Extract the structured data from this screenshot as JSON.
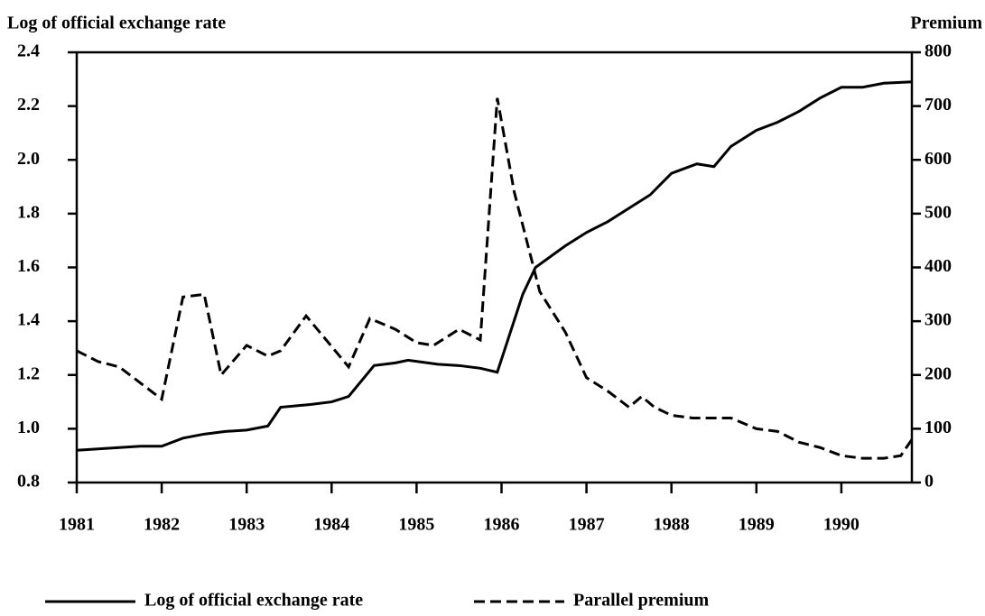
{
  "chart_data": {
    "type": "line",
    "y_label": "Log of official exchange rate",
    "y2_label": "Premium",
    "xlim": [
      1981,
      1990.83
    ],
    "xticks": [
      1981,
      1982,
      1983,
      1984,
      1985,
      1986,
      1987,
      1988,
      1989,
      1990
    ],
    "ylim": [
      0.8,
      2.4
    ],
    "yticks": [
      0.8,
      {
        "value": 1,
        "label": "1.0"
      },
      1.2,
      1.4,
      1.6,
      1.8,
      {
        "value": 2,
        "label": "2.0"
      },
      2.2,
      2.4
    ],
    "y2lim": [
      0,
      800
    ],
    "y2ticks": [
      0,
      100,
      200,
      300,
      400,
      500,
      600,
      700,
      800
    ],
    "legend": "bottom",
    "series": [
      {
        "name": "Log of official exchange rate",
        "color": "#000000",
        "line_style": "solid",
        "x": [
          1981,
          1981.25,
          1981.5,
          1981.75,
          1982,
          1982.25,
          1982.5,
          1982.75,
          1983,
          1983.25,
          1983.4,
          1983.75,
          1984,
          1984.2,
          1984.5,
          1984.75,
          1984.9,
          1985.25,
          1985.5,
          1985.75,
          1985.95,
          1986.25,
          1986.4,
          1986.75,
          1987,
          1987.25,
          1987.5,
          1987.75,
          1988,
          1988.3,
          1988.5,
          1988.7,
          1989,
          1989.25,
          1989.5,
          1989.75,
          1990,
          1990.25,
          1990.5,
          1990.83
        ],
        "values": [
          0.92,
          0.925,
          0.93,
          0.935,
          0.935,
          0.965,
          0.98,
          0.99,
          0.995,
          1.01,
          1.08,
          1.09,
          1.1,
          1.12,
          1.235,
          1.245,
          1.255,
          1.24,
          1.235,
          1.225,
          1.21,
          1.5,
          1.6,
          1.68,
          1.73,
          1.77,
          1.82,
          1.87,
          1.95,
          1.985,
          1.975,
          2.05,
          2.11,
          2.14,
          2.18,
          2.23,
          2.27,
          2.27,
          2.285,
          2.29
        ]
      },
      {
        "name": "Parallel premium",
        "color": "#000000",
        "line_style": "dashed",
        "axis": "y2",
        "x": [
          1981,
          1981.25,
          1981.5,
          1981.75,
          1982,
          1982.25,
          1982.5,
          1982.7,
          1983,
          1983.25,
          1983.4,
          1983.7,
          1984.2,
          1984.45,
          1984.75,
          1985,
          1985.2,
          1985.5,
          1985.75,
          1985.95,
          1986.15,
          1986.45,
          1986.75,
          1987,
          1987.25,
          1987.5,
          1987.65,
          1987.8,
          1988,
          1988.25,
          1988.5,
          1988.7,
          1989,
          1989.25,
          1989.5,
          1989.75,
          1990,
          1990.25,
          1990.5,
          1990.7,
          1990.83
        ],
        "values": [
          245,
          225,
          215,
          185,
          155,
          345,
          350,
          200,
          255,
          235,
          245,
          310,
          215,
          305,
          285,
          260,
          255,
          285,
          265,
          715,
          540,
          355,
          280,
          195,
          170,
          140,
          160,
          140,
          125,
          120,
          120,
          120,
          100,
          95,
          75,
          65,
          50,
          45,
          45,
          50,
          80
        ]
      }
    ]
  }
}
